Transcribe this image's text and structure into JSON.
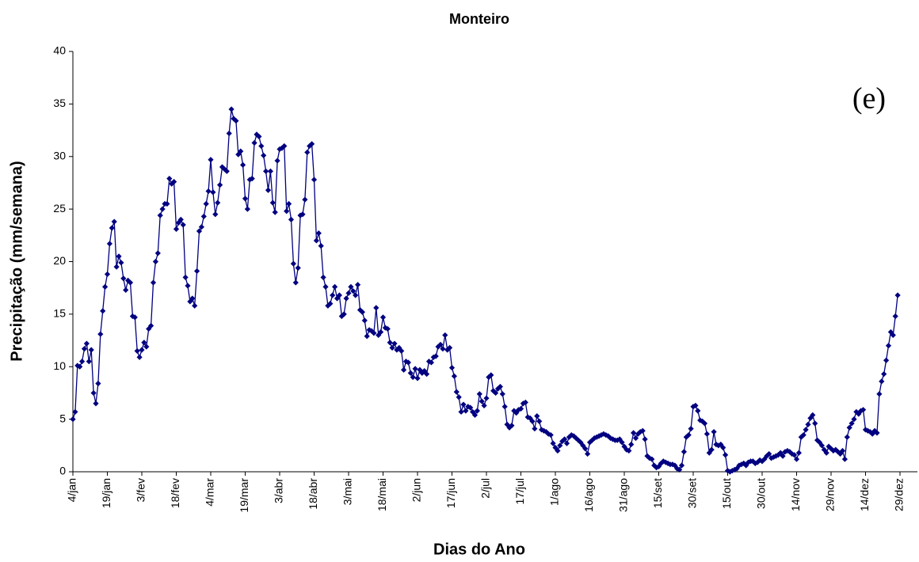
{
  "chart_data": {
    "type": "line",
    "title": "Monteiro",
    "x_label": "Dias do Ano",
    "y_label": "Precipitação (mm/semana)",
    "annotation": "(e)",
    "color": "#000080",
    "ylim": [
      0,
      40
    ],
    "yticks": [
      0,
      5,
      10,
      15,
      20,
      25,
      30,
      35,
      40
    ],
    "grid": false,
    "categories": [
      "4/jan",
      null,
      null,
      null,
      null,
      null,
      null,
      null,
      null,
      null,
      null,
      null,
      null,
      null,
      null,
      "19/jan",
      null,
      null,
      null,
      null,
      null,
      null,
      null,
      null,
      null,
      null,
      null,
      null,
      null,
      null,
      "3/fev",
      null,
      null,
      null,
      null,
      null,
      null,
      null,
      null,
      null,
      null,
      null,
      null,
      null,
      null,
      "18/fev",
      null,
      null,
      null,
      null,
      null,
      null,
      null,
      null,
      null,
      null,
      null,
      null,
      null,
      null,
      "4/mar",
      null,
      null,
      null,
      null,
      null,
      null,
      null,
      null,
      null,
      null,
      null,
      null,
      null,
      null,
      "19/mar",
      null,
      null,
      null,
      null,
      null,
      null,
      null,
      null,
      null,
      null,
      null,
      null,
      null,
      null,
      "3/abr",
      null,
      null,
      null,
      null,
      null,
      null,
      null,
      null,
      null,
      null,
      null,
      null,
      null,
      null,
      "18/abr",
      null,
      null,
      null,
      null,
      null,
      null,
      null,
      null,
      null,
      null,
      null,
      null,
      null,
      null,
      "3/mai",
      null,
      null,
      null,
      null,
      null,
      null,
      null,
      null,
      null,
      null,
      null,
      null,
      null,
      null,
      "18/mai",
      null,
      null,
      null,
      null,
      null,
      null,
      null,
      null,
      null,
      null,
      null,
      null,
      null,
      null,
      "2/jun",
      null,
      null,
      null,
      null,
      null,
      null,
      null,
      null,
      null,
      null,
      null,
      null,
      null,
      null,
      "17/jun",
      null,
      null,
      null,
      null,
      null,
      null,
      null,
      null,
      null,
      null,
      null,
      null,
      null,
      null,
      "2/jul",
      null,
      null,
      null,
      null,
      null,
      null,
      null,
      null,
      null,
      null,
      null,
      null,
      null,
      null,
      "17/jul",
      null,
      null,
      null,
      null,
      null,
      null,
      null,
      null,
      null,
      null,
      null,
      null,
      null,
      null,
      "1/ago",
      null,
      null,
      null,
      null,
      null,
      null,
      null,
      null,
      null,
      null,
      null,
      null,
      null,
      null,
      "16/ago",
      null,
      null,
      null,
      null,
      null,
      null,
      null,
      null,
      null,
      null,
      null,
      null,
      null,
      null,
      "31/ago",
      null,
      null,
      null,
      null,
      null,
      null,
      null,
      null,
      null,
      null,
      null,
      null,
      null,
      null,
      "15/set",
      null,
      null,
      null,
      null,
      null,
      null,
      null,
      null,
      null,
      null,
      null,
      null,
      null,
      null,
      "30/set",
      null,
      null,
      null,
      null,
      null,
      null,
      null,
      null,
      null,
      null,
      null,
      null,
      null,
      null,
      "15/out",
      null,
      null,
      null,
      null,
      null,
      null,
      null,
      null,
      null,
      null,
      null,
      null,
      null,
      null,
      "30/out",
      null,
      null,
      null,
      null,
      null,
      null,
      null,
      null,
      null,
      null,
      null,
      null,
      null,
      null,
      "14/nov",
      null,
      null,
      null,
      null,
      null,
      null,
      null,
      null,
      null,
      null,
      null,
      null,
      null,
      null,
      "29/nov",
      null,
      null,
      null,
      null,
      null,
      null,
      null,
      null,
      null,
      null,
      null,
      null,
      null,
      null,
      "14/dez",
      null,
      null,
      null,
      null,
      null,
      null,
      null,
      null,
      null,
      null,
      null,
      null,
      null,
      null,
      "29/dez"
    ],
    "values": [
      5.0,
      5.7,
      10.1,
      10.0,
      10.5,
      11.7,
      12.2,
      10.5,
      11.6,
      7.5,
      6.5,
      8.4,
      13.1,
      15.3,
      17.6,
      18.8,
      21.7,
      23.2,
      23.8,
      19.5,
      20.5,
      19.9,
      18.4,
      17.3,
      18.2,
      18.0,
      14.8,
      14.7,
      11.5,
      10.9,
      11.6,
      12.3,
      11.9,
      13.6,
      13.9,
      18.0,
      20.0,
      20.8,
      24.4,
      25.0,
      25.5,
      25.5,
      27.9,
      27.4,
      27.6,
      23.1,
      23.7,
      24.0,
      23.5,
      18.5,
      17.7,
      16.2,
      16.5,
      15.8,
      19.1,
      22.9,
      23.3,
      24.3,
      25.5,
      26.7,
      29.7,
      26.6,
      24.5,
      25.6,
      27.3,
      29.0,
      28.8,
      28.6,
      32.2,
      34.5,
      33.6,
      33.4,
      30.2,
      30.5,
      29.2,
      26.0,
      25.0,
      27.8,
      27.9,
      31.3,
      32.1,
      31.9,
      31.0,
      30.1,
      28.6,
      26.8,
      28.6,
      25.6,
      24.7,
      29.6,
      30.7,
      30.8,
      31.0,
      24.8,
      25.5,
      24.0,
      19.8,
      18.0,
      19.4,
      24.4,
      24.5,
      25.9,
      30.4,
      31.0,
      31.2,
      27.8,
      22.0,
      22.7,
      21.5,
      18.5,
      17.6,
      15.8,
      16.0,
      16.8,
      17.6,
      16.5,
      16.8,
      14.8,
      15.0,
      16.5,
      17.0,
      17.6,
      17.2,
      16.8,
      17.8,
      15.4,
      15.2,
      14.4,
      12.9,
      13.5,
      13.4,
      13.2,
      15.6,
      13.0,
      13.3,
      14.7,
      13.7,
      13.6,
      12.3,
      11.8,
      12.2,
      11.6,
      11.8,
      11.5,
      9.7,
      10.5,
      10.4,
      9.4,
      9.0,
      9.8,
      8.9,
      9.7,
      9.4,
      9.6,
      9.3,
      10.5,
      10.4,
      10.9,
      11.0,
      11.9,
      12.1,
      11.7,
      13.0,
      11.6,
      11.8,
      9.9,
      9.1,
      7.6,
      7.1,
      5.7,
      6.4,
      5.8,
      6.2,
      6.1,
      5.7,
      5.4,
      5.8,
      7.4,
      6.7,
      6.3,
      7.0,
      9.0,
      9.2,
      7.7,
      7.5,
      7.9,
      8.1,
      7.4,
      6.2,
      4.5,
      4.2,
      4.4,
      5.8,
      5.6,
      5.9,
      6.0,
      6.5,
      6.6,
      5.2,
      5.1,
      4.8,
      4.1,
      5.3,
      4.8,
      4.0,
      3.9,
      3.8,
      3.6,
      3.5,
      2.7,
      2.3,
      2.0,
      2.5,
      2.9,
      3.1,
      2.7,
      3.3,
      3.5,
      3.4,
      3.2,
      3.0,
      2.8,
      2.5,
      2.2,
      1.7,
      2.8,
      3.0,
      3.2,
      3.3,
      3.4,
      3.5,
      3.6,
      3.5,
      3.4,
      3.2,
      3.1,
      3.0,
      3.0,
      3.1,
      2.8,
      2.4,
      2.1,
      2.0,
      2.6,
      3.7,
      3.2,
      3.6,
      3.8,
      3.9,
      3.1,
      1.5,
      1.3,
      1.2,
      0.6,
      0.4,
      0.5,
      0.8,
      1.0,
      0.9,
      0.8,
      0.7,
      0.7,
      0.6,
      0.3,
      0.2,
      0.6,
      1.9,
      3.3,
      3.5,
      4.1,
      6.2,
      6.3,
      5.8,
      4.9,
      4.8,
      4.6,
      3.6,
      1.8,
      2.1,
      3.8,
      2.6,
      2.5,
      2.6,
      2.3,
      1.6,
      0.1,
      0.0,
      0.1,
      0.2,
      0.3,
      0.6,
      0.7,
      0.8,
      0.6,
      0.9,
      1.0,
      1.0,
      0.8,
      0.9,
      1.1,
      1.0,
      1.2,
      1.5,
      1.7,
      1.3,
      1.4,
      1.5,
      1.6,
      1.8,
      1.5,
      1.9,
      2.0,
      1.9,
      1.7,
      1.6,
      1.2,
      1.8,
      3.3,
      3.5,
      4.0,
      4.5,
      5.1,
      5.4,
      4.6,
      3.0,
      2.8,
      2.5,
      2.1,
      1.8,
      2.4,
      2.2,
      2.0,
      2.1,
      1.9,
      1.7,
      2.0,
      1.2,
      3.3,
      4.2,
      4.6,
      5.0,
      5.7,
      5.5,
      5.8,
      5.9,
      4.0,
      3.9,
      3.8,
      3.6,
      3.9,
      3.7,
      7.4,
      8.6,
      9.3,
      10.6,
      12.0,
      13.3,
      13.0,
      14.8,
      16.8,
      null
    ]
  }
}
